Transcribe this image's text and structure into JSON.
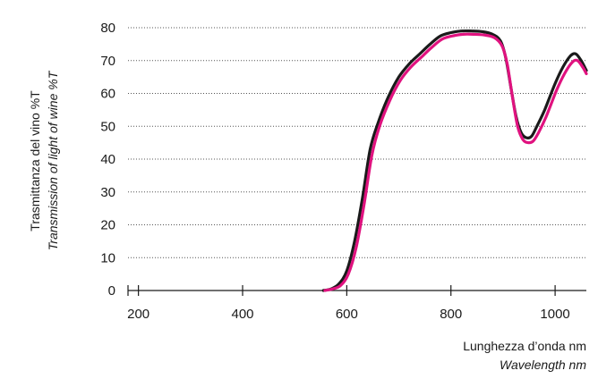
{
  "chart_data": {
    "type": "line",
    "title": "",
    "xlabel": "Lunghezza d’onda nm",
    "xlabel_en": "Wavelength nm",
    "ylabel": "Trasmittanza del vino %T",
    "ylabel_en": "Transmission of light of wine %T",
    "xlim": [
      180,
      1060
    ],
    "ylim": [
      0,
      80
    ],
    "x_ticks": [
      200,
      400,
      600,
      800,
      1000
    ],
    "y_ticks": [
      0,
      10,
      20,
      30,
      40,
      50,
      60,
      70,
      80
    ],
    "grid": "horizontal dotted",
    "series": [
      {
        "color": "#1a1a1a",
        "x": [
          555,
          570,
          585,
          600,
          615,
          630,
          645,
          660,
          680,
          700,
          720,
          740,
          760,
          780,
          800,
          820,
          840,
          860,
          880,
          895,
          905,
          915,
          925,
          935,
          945,
          955,
          965,
          980,
          1000,
          1015,
          1030,
          1040,
          1050,
          1060
        ],
        "y": [
          0,
          0.5,
          2,
          6,
          15,
          28,
          43,
          51,
          59,
          65,
          69,
          72,
          75,
          77.5,
          78.5,
          79,
          79,
          78.8,
          78,
          76,
          71,
          62,
          53,
          48,
          46.5,
          47,
          50,
          55,
          63,
          68,
          71.5,
          72,
          70,
          67
        ]
      },
      {
        "color": "#e0127f",
        "x": [
          558,
          573,
          588,
          603,
          618,
          633,
          648,
          663,
          683,
          703,
          723,
          743,
          763,
          783,
          803,
          823,
          843,
          863,
          883,
          898,
          908,
          918,
          928,
          938,
          948,
          958,
          968,
          983,
          1003,
          1018,
          1033,
          1043,
          1053,
          1060
        ],
        "y": [
          0,
          0.5,
          1.5,
          5,
          13,
          26,
          41,
          50,
          58,
          64,
          68,
          71,
          74,
          76.5,
          77.5,
          78,
          78,
          77.8,
          77,
          74.5,
          69,
          59,
          50,
          46,
          45,
          45.5,
          48,
          53,
          61,
          66,
          69.5,
          70,
          68,
          66
        ]
      }
    ]
  }
}
